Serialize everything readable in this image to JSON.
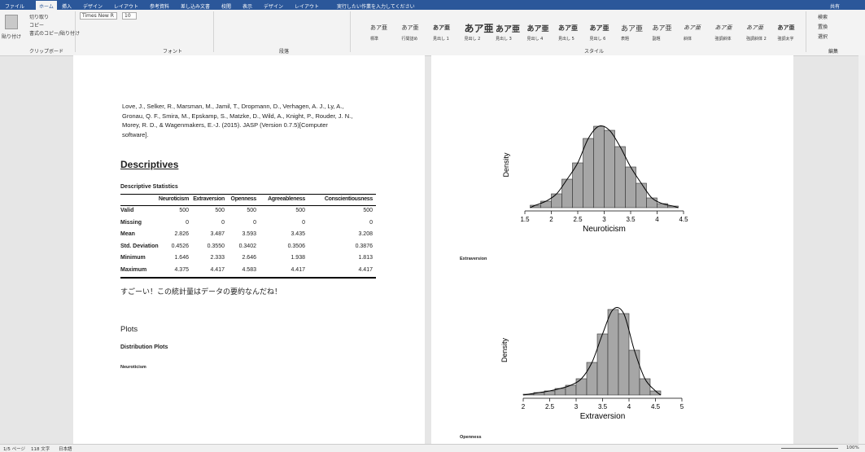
{
  "ribbon": {
    "tabs": [
      "ファイル",
      "ホーム",
      "挿入",
      "デザイン",
      "レイアウト",
      "参考資料",
      "差し込み文書",
      "校閲",
      "表示",
      "デザイン",
      "レイアウト"
    ],
    "search": "実行したい作業を入力してください",
    "share": "共有",
    "clipboard": {
      "paste": "貼り付け",
      "cut": "切り取り",
      "copy": "コピー",
      "format_painter": "書式のコピー/貼り付け",
      "label": "クリップボード"
    },
    "font": {
      "name": "Times New R",
      "size": "10",
      "label": "フォント"
    },
    "paragraph": {
      "label": "段落"
    },
    "styles": {
      "items": [
        {
          "sample": "あア亜",
          "name": "標準"
        },
        {
          "sample": "あア亜",
          "name": "行間詰め"
        },
        {
          "sample": "あア亜",
          "name": "見出し 1"
        },
        {
          "sample": "あア亜",
          "name": "見出し 2"
        },
        {
          "sample": "あア亜",
          "name": "見出し 3"
        },
        {
          "sample": "あア亜",
          "name": "見出し 4"
        },
        {
          "sample": "あア亜",
          "name": "見出し 5"
        },
        {
          "sample": "あア亜",
          "name": "見出し 6"
        },
        {
          "sample": "あア亜",
          "name": "表題"
        },
        {
          "sample": "あア亜",
          "name": "副題"
        },
        {
          "sample": "あア亜",
          "name": "斜体"
        },
        {
          "sample": "あア亜",
          "name": "強調斜体"
        },
        {
          "sample": "あア亜",
          "name": "強調斜体 2"
        },
        {
          "sample": "あア亜",
          "name": "強調太字"
        }
      ],
      "label": "スタイル"
    },
    "editing": {
      "find": "検索",
      "replace": "置換",
      "select": "選択",
      "label": "編集"
    }
  },
  "document": {
    "reference_lines": [
      "Love, J., Selker, R., Marsman, M., Jamil, T., Dropmann, D., Verhagen, A. J., Ly, A.,",
      "Gronau, Q. F., Smira, M., Epskamp, S., Matzke, D., Wild, A., Knight, P., Rouder, J. N.,",
      "Morey, R. D., & Wagenmakers, E.-J. (2015). JASP (Version 0.7.5)[Computer",
      "software]."
    ],
    "heading": "Descriptives",
    "table": {
      "caption": "Descriptive Statistics",
      "columns": [
        "Neuroticism",
        "Extraversion",
        "Openness",
        "Agreeableness",
        "Conscientiousness"
      ],
      "rows": [
        {
          "label": "Valid",
          "values": [
            "500",
            "500",
            "500",
            "500",
            "500"
          ]
        },
        {
          "label": "Missing",
          "values": [
            "0",
            "0",
            "0",
            "0",
            "0"
          ]
        },
        {
          "label": "Mean",
          "values": [
            "2.826",
            "3.487",
            "3.593",
            "3.435",
            "3.208"
          ]
        },
        {
          "label": "Std. Deviation",
          "values": [
            "0.4526",
            "0.3550",
            "0.3402",
            "0.3506",
            "0.3876"
          ]
        },
        {
          "label": "Minimum",
          "values": [
            "1.646",
            "2.333",
            "2.646",
            "1.938",
            "1.813"
          ]
        },
        {
          "label": "Maximum",
          "values": [
            "4.375",
            "4.417",
            "4.583",
            "4.417",
            "4.417"
          ]
        }
      ]
    },
    "comment": "すごーい！この統計量はデータの要約なんだね！",
    "plots_heading": "Plots",
    "distribution_heading": "Distribution Plots",
    "neuroticism_label": "Neuroticism",
    "extraversion_label": "Extraversion",
    "openness_label": "Openness"
  },
  "charts": [
    {
      "type": "histogram",
      "ylabel": "Density",
      "xlabel": "Neuroticism",
      "bins": [
        1.6,
        1.8,
        2.0,
        2.2,
        2.4,
        2.6,
        2.8,
        3.0,
        3.2,
        3.4,
        3.6,
        3.8,
        4.0,
        4.2,
        4.4
      ],
      "values": [
        0.03,
        0.08,
        0.17,
        0.35,
        0.55,
        0.85,
        1.0,
        0.95,
        0.75,
        0.5,
        0.3,
        0.12,
        0.05,
        0.02
      ],
      "xlim": [
        1.5,
        4.5
      ],
      "xticks": [
        1.5,
        2,
        2.5,
        3,
        3.5,
        4,
        4.5
      ],
      "ylim": [
        0,
        1.05
      ],
      "color": "#a6a6a6"
    },
    {
      "type": "histogram",
      "ylabel": "Density",
      "xlabel": "Extraversion",
      "bins": [
        2.0,
        2.2,
        2.4,
        2.6,
        2.8,
        3.0,
        3.2,
        3.4,
        3.6,
        3.8,
        4.0,
        4.2,
        4.4,
        4.6
      ],
      "values": [
        0.01,
        0.03,
        0.05,
        0.08,
        0.12,
        0.2,
        0.4,
        0.75,
        1.05,
        1.0,
        0.55,
        0.2,
        0.05
      ],
      "xlim": [
        2,
        5
      ],
      "xticks": [
        2,
        2.5,
        3,
        3.5,
        4,
        4.5,
        5
      ],
      "ylim": [
        0,
        1.1
      ],
      "color": "#a6a6a6"
    }
  ],
  "status": {
    "page": "1/5 ページ",
    "words": "118 文字",
    "language": "日本語",
    "zoom": "100%"
  }
}
